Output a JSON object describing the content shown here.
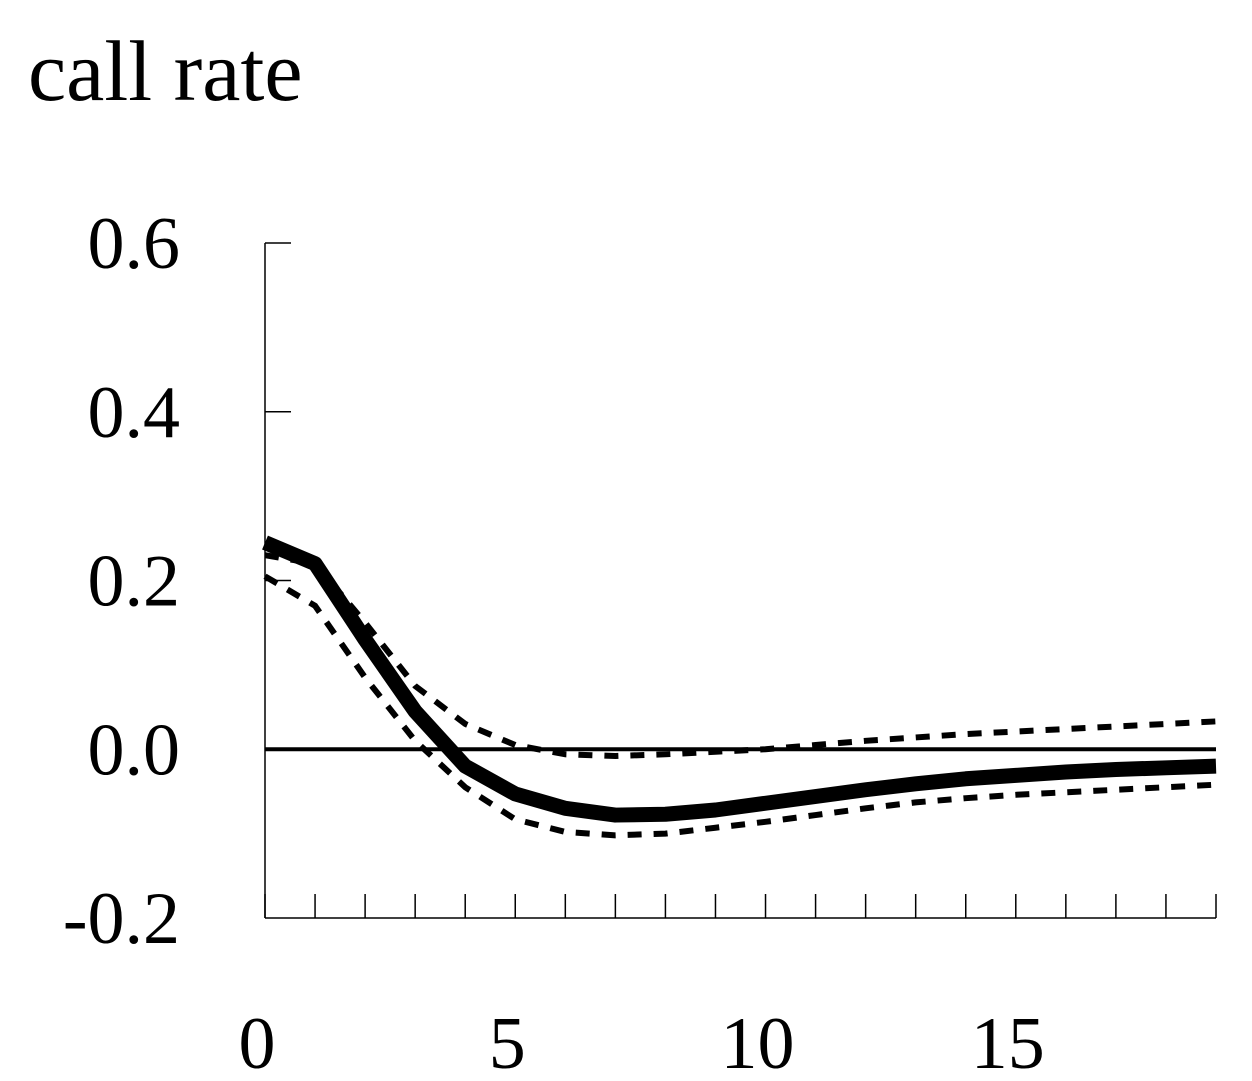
{
  "chart_data": {
    "type": "line",
    "title": "call rate",
    "xlabel": "",
    "ylabel": "",
    "xlim": [
      0,
      19
    ],
    "ylim": [
      -0.2,
      0.6
    ],
    "x_ticks": [
      0,
      5,
      10,
      15
    ],
    "x_tick_labels": [
      "0",
      "5",
      "10",
      "15"
    ],
    "y_ticks": [
      0.6,
      0.4,
      0.2,
      0.0,
      -0.2
    ],
    "y_tick_labels": [
      "0.6",
      "0.4",
      "0.2",
      "0.0",
      "-0.2"
    ],
    "x": [
      0,
      1,
      2,
      3,
      4,
      5,
      6,
      7,
      8,
      9,
      10,
      11,
      12,
      13,
      14,
      15,
      16,
      17,
      18,
      19
    ],
    "zero_line": true,
    "grid": false,
    "legend": "none",
    "series": [
      {
        "style": "solid-thick",
        "values": [
          0.245,
          0.22,
          0.13,
          0.045,
          -0.02,
          -0.053,
          -0.07,
          -0.078,
          -0.077,
          -0.072,
          -0.064,
          -0.056,
          -0.048,
          -0.041,
          -0.035,
          -0.031,
          -0.027,
          -0.024,
          -0.022,
          -0.02
        ]
      },
      {
        "style": "dotted-upper",
        "values": [
          0.23,
          0.22,
          0.15,
          0.075,
          0.03,
          0.005,
          -0.006,
          -0.008,
          -0.006,
          -0.003,
          0.0,
          0.005,
          0.01,
          0.014,
          0.018,
          0.021,
          0.024,
          0.027,
          0.03,
          0.033
        ]
      },
      {
        "style": "dotted-lower",
        "values": [
          0.205,
          0.17,
          0.085,
          0.01,
          -0.045,
          -0.083,
          -0.098,
          -0.102,
          -0.1,
          -0.093,
          -0.086,
          -0.078,
          -0.07,
          -0.063,
          -0.058,
          -0.054,
          -0.051,
          -0.048,
          -0.045,
          -0.042
        ]
      }
    ]
  }
}
